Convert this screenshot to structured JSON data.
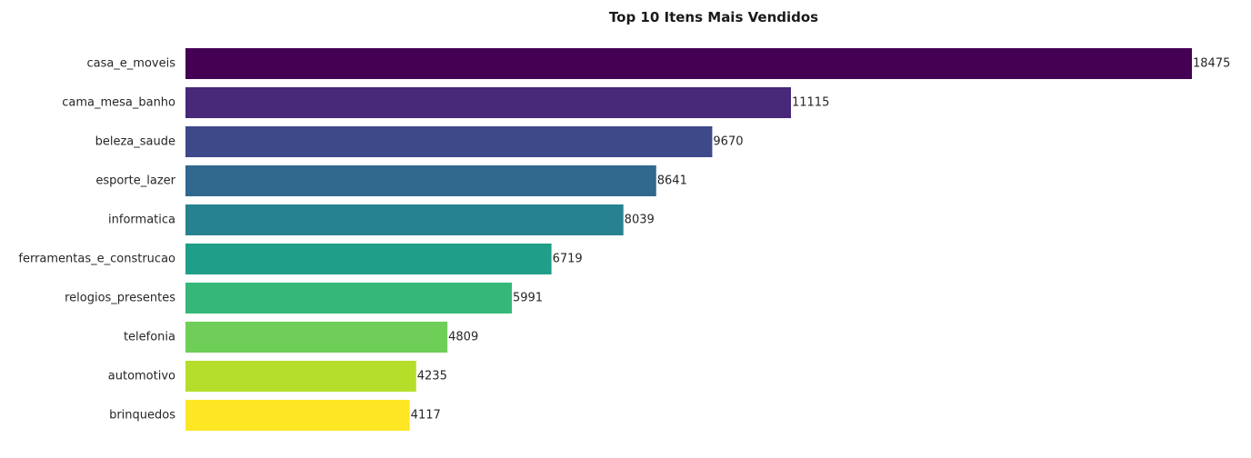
{
  "chart_data": {
    "type": "bar",
    "orientation": "horizontal",
    "title": "Top 10 Itens Mais Vendidos",
    "xlabel": "",
    "ylabel": "",
    "grid": false,
    "axes_visible": false,
    "categories": [
      "casa_e_moveis",
      "cama_mesa_banho",
      "beleza_saude",
      "esporte_lazer",
      "informatica",
      "ferramentas_e_construcao",
      "relogios_presentes",
      "telefonia",
      "automotivo",
      "brinquedos"
    ],
    "values": [
      18475,
      11115,
      9670,
      8641,
      8039,
      6719,
      5991,
      4809,
      4235,
      4117
    ],
    "value_labels": [
      "18475",
      "11115",
      "9670",
      "8641",
      "8039",
      "6719",
      "5991",
      "4809",
      "4235",
      "4117"
    ],
    "colors": [
      "#440154",
      "#482878",
      "#3e4989",
      "#31688e",
      "#26828e",
      "#1f9e89",
      "#35b779",
      "#6ece58",
      "#b5de2b",
      "#fde725"
    ],
    "xlim": [
      0,
      18475
    ]
  }
}
